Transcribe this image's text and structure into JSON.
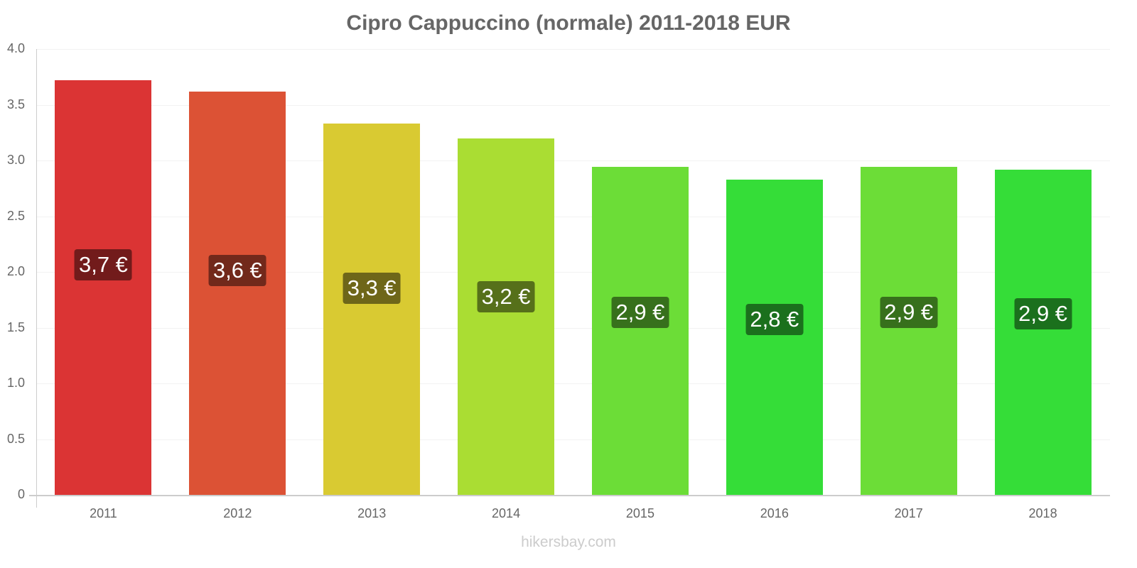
{
  "title": "Cipro Cappuccino (normale) 2011-2018 EUR",
  "watermark": "hikersbay.com",
  "y_ticks": [
    "0",
    "0.5",
    "1.0",
    "1.5",
    "2.0",
    "2.5",
    "3.0",
    "3.5",
    "4.0"
  ],
  "chart_data": {
    "type": "bar",
    "title": "Cipro Cappuccino (normale) 2011-2018 EUR",
    "xlabel": "",
    "ylabel": "",
    "ylim": [
      0,
      4.0
    ],
    "grid": true,
    "legend": null,
    "categories": [
      "2011",
      "2012",
      "2013",
      "2014",
      "2015",
      "2016",
      "2017",
      "2018"
    ],
    "values": [
      3.72,
      3.62,
      3.33,
      3.2,
      2.94,
      2.83,
      2.94,
      2.92
    ],
    "labels": [
      "3,7 €",
      "3,6 €",
      "3,3 €",
      "3,2 €",
      "2,9 €",
      "2,8 €",
      "2,9 €",
      "2,9 €"
    ],
    "bar_colors": [
      "#db3434",
      "#dc5235",
      "#d9ca32",
      "#aadd33",
      "#6cdd37",
      "#35dd38",
      "#6cdd37",
      "#35dd38"
    ],
    "label_colors": [
      "#721b1b",
      "#72291b",
      "#6e6619",
      "#56701a",
      "#37701c",
      "#1b701d",
      "#37701c",
      "#1b701d"
    ]
  }
}
